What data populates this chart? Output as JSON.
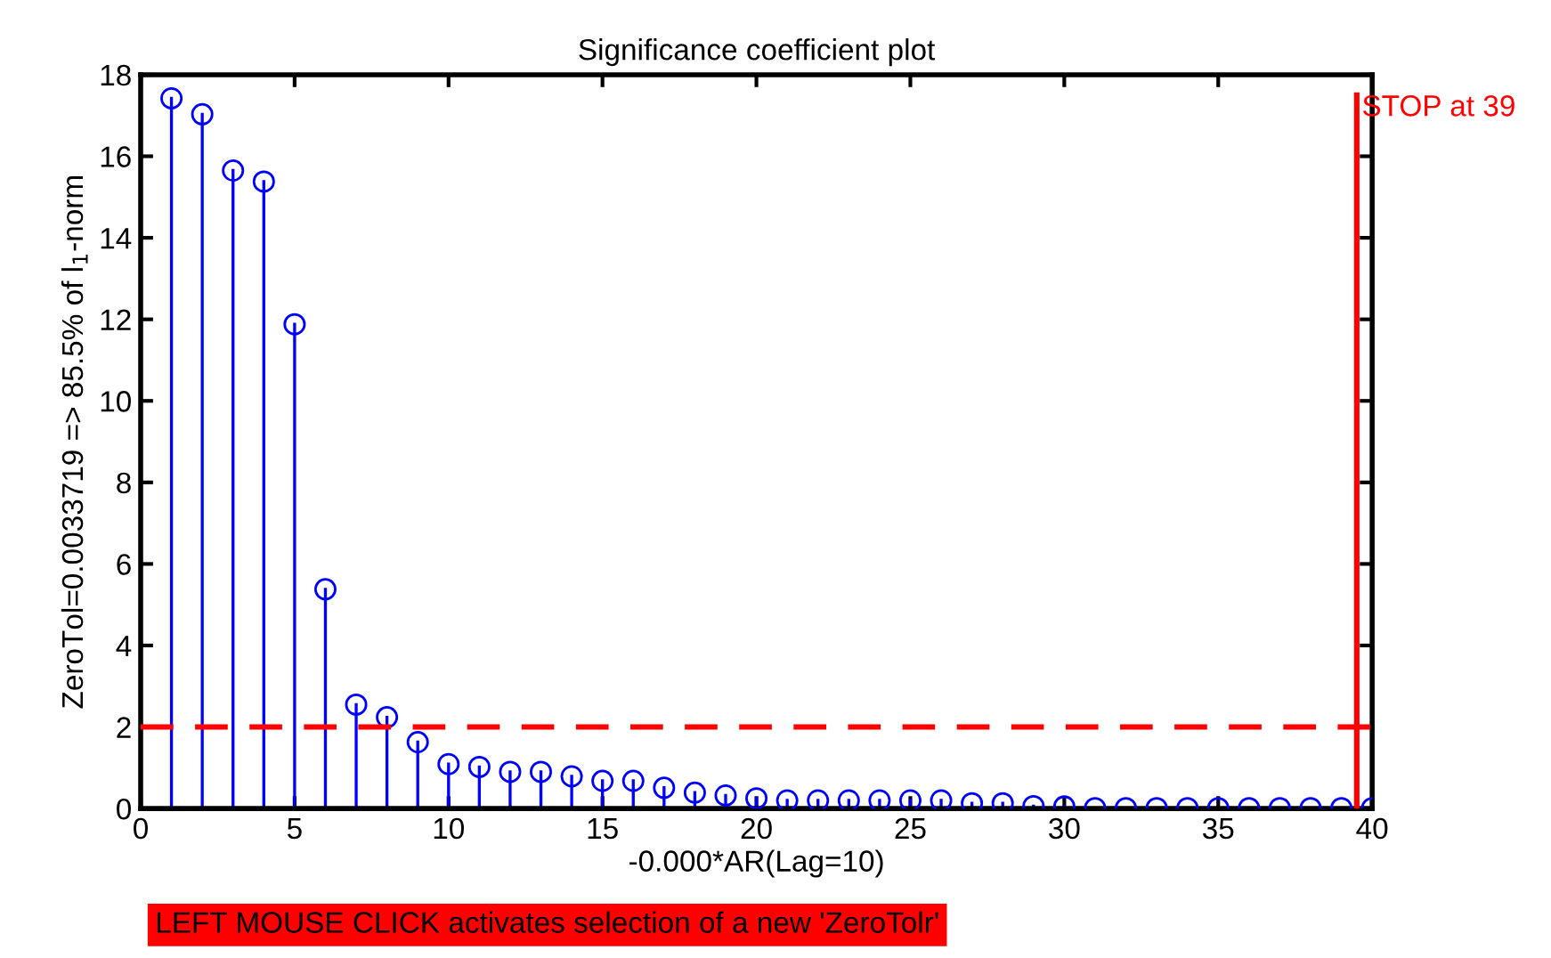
{
  "chart_data": {
    "type": "lollipop",
    "title": "Significance coefficient plot",
    "xlabel": "-0.000*AR(Lag=10)",
    "ylabel": "ZeroTol=0.0033719 => 85.5% of l$_{1}$-norm",
    "x": [
      1,
      2,
      3,
      4,
      5,
      6,
      7,
      8,
      9,
      10,
      11,
      12,
      13,
      14,
      15,
      16,
      17,
      18,
      19,
      20,
      21,
      22,
      23,
      24,
      25,
      26,
      27,
      28,
      29,
      30,
      31,
      32,
      33,
      34,
      35,
      36,
      37,
      38,
      39,
      40
    ],
    "series": [
      {
        "color": "#0000ff",
        "values": [
          17.42,
          17.03,
          15.65,
          15.38,
          11.88,
          5.38,
          2.55,
          2.24,
          1.63,
          1.09,
          1.02,
          0.9,
          0.9,
          0.79,
          0.68,
          0.68,
          0.51,
          0.39,
          0.32,
          0.25,
          0.2,
          0.2,
          0.2,
          0.2,
          0.2,
          0.2,
          0.13,
          0.13,
          0.06,
          0.05,
          0.01,
          0.01,
          0.01,
          0.01,
          0.01,
          0.01,
          0.01,
          0.01,
          0.01,
          0.01
        ]
      }
    ],
    "xlim": [
      0,
      40
    ],
    "ylim": [
      0,
      18
    ],
    "xticks": [
      0,
      5,
      10,
      15,
      20,
      25,
      30,
      35,
      40
    ],
    "yticks": [
      0,
      2,
      4,
      6,
      8,
      10,
      12,
      14,
      16,
      18
    ],
    "marker": "circle",
    "grid": false,
    "legend": false,
    "ref_lines": [
      {
        "axis": "y",
        "value": 2,
        "color": "#ff0000",
        "line_style": "dashed"
      },
      {
        "axis": "x",
        "value": 39.5,
        "color": "#ff0000",
        "line_style": "solid",
        "label": "STOP at 39"
      }
    ],
    "annotations": [
      "LEFT MOUSE CLICK activates selection of a new 'ZeroTolr'"
    ]
  }
}
